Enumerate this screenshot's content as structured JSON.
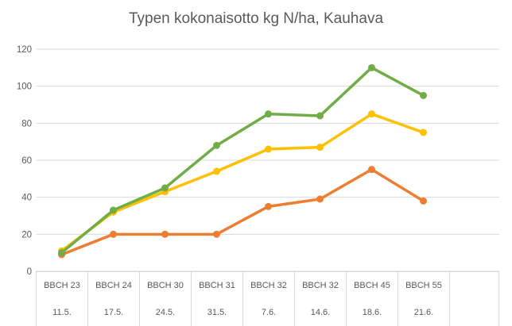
{
  "title": "Typen kokonaisotto kg N/ha, Kauhava",
  "y_axis": {
    "tick_labels": [
      "0",
      "20",
      "40",
      "60",
      "80",
      "100",
      "120"
    ]
  },
  "x_axis": {
    "row1": [
      "BBCH 23",
      "BBCH 24",
      "BBCH 30",
      "BBCH 31",
      "BBCH 32",
      "BBCH 32",
      "BBCH 45",
      "BBCH 55"
    ],
    "row2": [
      "11.5.",
      "17.5.",
      "24.5.",
      "31.5.",
      "7.6.",
      "14.6.",
      "18.6.",
      "21.6."
    ],
    "trailing_empty_cell": true
  },
  "chart_data": {
    "type": "line",
    "title": "Typen kokonaisotto kg N/ha, Kauhava",
    "categories": [
      "BBCH 23",
      "BBCH 24",
      "BBCH 30",
      "BBCH 31",
      "BBCH 32",
      "BBCH 32",
      "BBCH 45",
      "BBCH 55"
    ],
    "category_dates": [
      "11.5.",
      "17.5.",
      "24.5.",
      "31.5.",
      "7.6.",
      "14.6.",
      "18.6.",
      "21.6."
    ],
    "series": [
      {
        "name": "yellow",
        "color": "#FFC000",
        "values": [
          11,
          32,
          43,
          54,
          66,
          67,
          85,
          75
        ]
      },
      {
        "name": "orange",
        "color": "#ED7D31",
        "values": [
          9,
          20,
          20,
          20,
          35,
          39,
          55,
          38
        ]
      },
      {
        "name": "green",
        "color": "#70AD47",
        "values": [
          10,
          33,
          45,
          68,
          85,
          84,
          110,
          95
        ]
      }
    ],
    "ylim": [
      0,
      120
    ],
    "y_tick_step": 20,
    "xlabel": "",
    "ylabel": "",
    "grid": true,
    "legend": "none",
    "colors": {
      "text": "#595959",
      "gridline": "#D9D9D9",
      "table_border": "#D9D9D9",
      "background": "#FFFFFF"
    }
  }
}
